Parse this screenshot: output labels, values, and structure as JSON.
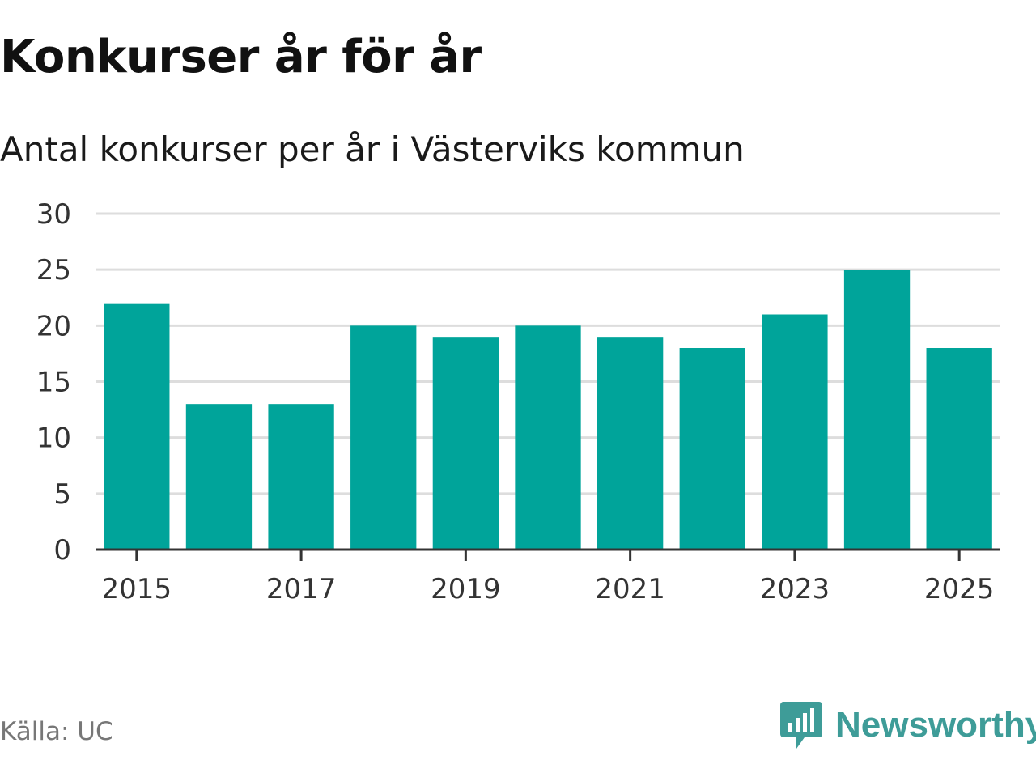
{
  "header": {
    "title": "Konkurser år för år",
    "subtitle": "Antal konkurser per år i Västerviks kommun"
  },
  "footer": {
    "source": "Källa: UC",
    "brand": "Newsworthy",
    "brand_icon": "newsworthy-logo-icon"
  },
  "colors": {
    "bar": "#00a49a",
    "grid": "#dddddd",
    "axis": "#333333",
    "brand": "#3e9c98"
  },
  "chart_data": {
    "type": "bar",
    "title": "Konkurser år för år",
    "subtitle": "Antal konkurser per år i Västerviks kommun",
    "xlabel": "",
    "ylabel": "",
    "categories": [
      "2015",
      "2016",
      "2017",
      "2018",
      "2019",
      "2020",
      "2021",
      "2022",
      "2023",
      "2024",
      "2025"
    ],
    "values": [
      22,
      13,
      13,
      20,
      19,
      20,
      19,
      18,
      21,
      25,
      18
    ],
    "x_tick_labels": [
      "2015",
      "2017",
      "2019",
      "2021",
      "2023",
      "2025"
    ],
    "y_ticks": [
      0,
      5,
      10,
      15,
      20,
      25,
      30
    ],
    "ylim": [
      0,
      30
    ],
    "grid": true,
    "legend": "none"
  }
}
